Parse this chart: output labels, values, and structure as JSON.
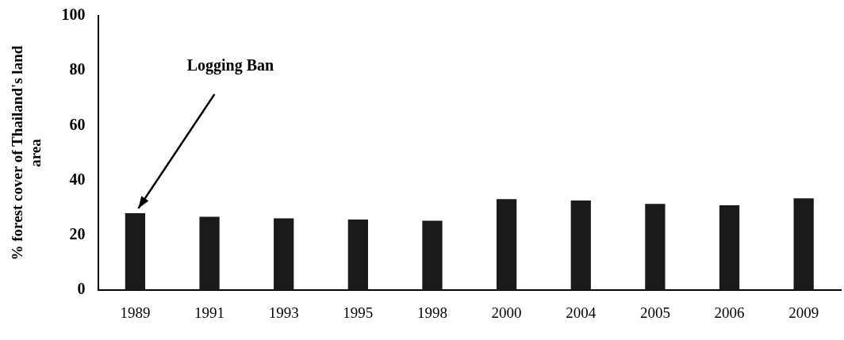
{
  "chart_data": {
    "type": "bar",
    "ylabel": "% forest cover of Thailand's land area",
    "categories": [
      "1989",
      "1991",
      "1993",
      "1995",
      "1998",
      "2000",
      "2004",
      "2005",
      "2006",
      "2009"
    ],
    "values": [
      28.1,
      26.8,
      26.2,
      25.8,
      25.3,
      33.2,
      32.7,
      31.5,
      31.0,
      33.5
    ],
    "color": "#1a1a1a",
    "ylim": [
      0,
      100
    ],
    "yticks": [
      0,
      20,
      40,
      60,
      80,
      100
    ],
    "grid": false,
    "legend": false,
    "annotations": [
      {
        "text": "Logging Ban",
        "x": "1989",
        "y": 28.1
      }
    ]
  }
}
